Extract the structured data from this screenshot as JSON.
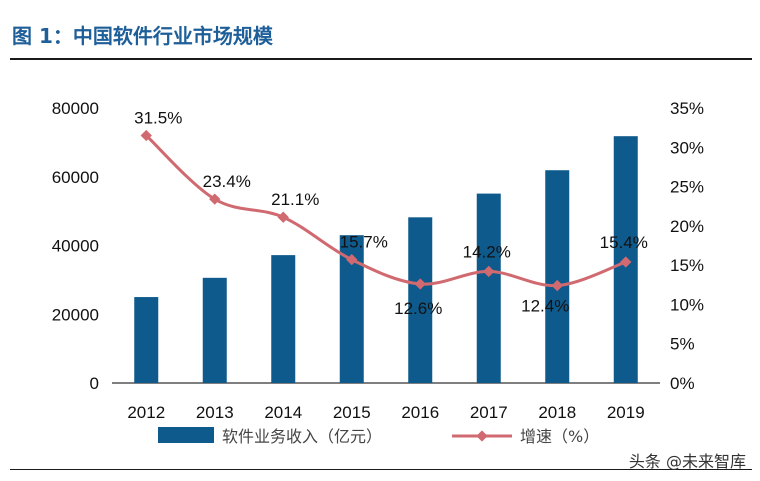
{
  "header": {
    "title": "图 1：中国软件行业市场规模"
  },
  "watermark": "头条 @未来智库",
  "chart_data": {
    "type": "bar",
    "title": "图 1：中国软件行业市场规模",
    "categories": [
      "2012",
      "2013",
      "2014",
      "2015",
      "2016",
      "2017",
      "2018",
      "2019"
    ],
    "series": [
      {
        "name": "软件业务收入（亿元）",
        "type": "bar",
        "axis": "left",
        "color": "#0f5a8c",
        "values": [
          25000,
          30600,
          37200,
          43000,
          48200,
          55100,
          61900,
          71800
        ]
      },
      {
        "name": "增速（%）",
        "type": "line",
        "axis": "right",
        "color": "#d06a70",
        "values": [
          31.5,
          23.4,
          21.1,
          15.7,
          12.6,
          14.2,
          12.4,
          15.4
        ],
        "labels": [
          "31.5%",
          "23.4%",
          "21.1%",
          "15.7%",
          "12.6%",
          "14.2%",
          "12.4%",
          "15.4%"
        ]
      }
    ],
    "y_left": {
      "min": 0,
      "max": 80000,
      "ticks": [
        "0",
        "20000",
        "40000",
        "60000",
        "80000"
      ]
    },
    "y_right": {
      "min": 0,
      "max": 35,
      "ticks": [
        "0%",
        "5%",
        "10%",
        "15%",
        "20%",
        "25%",
        "30%",
        "35%"
      ]
    },
    "grid": false,
    "legend_position": "bottom"
  }
}
